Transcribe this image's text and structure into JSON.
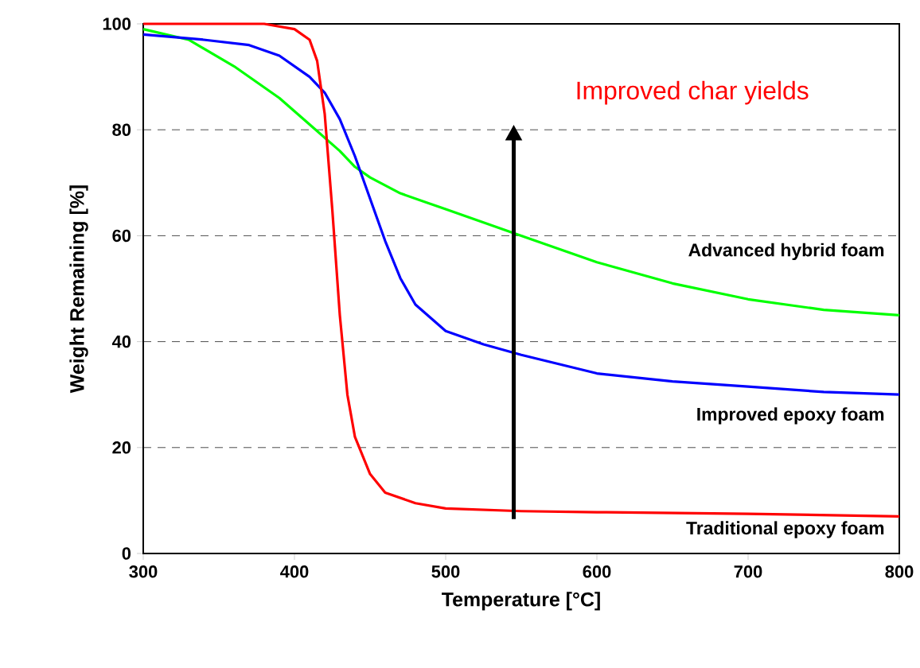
{
  "chart_data": {
    "type": "line",
    "xlabel": "Temperature [°C]",
    "ylabel": "Weight Remaining  [%]",
    "xlim": [
      300,
      800
    ],
    "ylim": [
      0,
      100
    ],
    "xticks": [
      300,
      400,
      500,
      600,
      700,
      800
    ],
    "yticks": [
      0,
      20,
      40,
      60,
      80,
      100
    ],
    "grid": "y",
    "marker": "none",
    "line_style": "solid",
    "legend": false,
    "annotations": [
      "Improved char yields"
    ],
    "series": [
      {
        "name": "Advanced hybrid foam",
        "color": "#00ff00",
        "x": [
          300,
          330,
          360,
          390,
          410,
          430,
          440,
          450,
          470,
          500,
          550,
          600,
          650,
          700,
          750,
          800
        ],
        "values": [
          99,
          97,
          92,
          86,
          81,
          76,
          73,
          71,
          68,
          65,
          60,
          55,
          51,
          48,
          46,
          45
        ]
      },
      {
        "name": "Improved epoxy foam",
        "color": "#0000ff",
        "x": [
          300,
          340,
          370,
          390,
          410,
          420,
          430,
          440,
          450,
          460,
          470,
          480,
          500,
          525,
          550,
          600,
          650,
          700,
          750,
          800
        ],
        "values": [
          98,
          97,
          96,
          94,
          90,
          87,
          82,
          75,
          67,
          59,
          52,
          47,
          42,
          39.5,
          37.5,
          34,
          32.5,
          31.5,
          30.5,
          30
        ]
      },
      {
        "name": "Traditional epoxy foam",
        "color": "#ff0000",
        "x": [
          300,
          380,
          400,
          410,
          415,
          420,
          425,
          430,
          435,
          440,
          450,
          460,
          480,
          500,
          550,
          600,
          700,
          800
        ],
        "values": [
          100,
          100,
          99,
          97,
          93,
          83,
          65,
          45,
          30,
          22,
          15,
          11.5,
          9.5,
          8.5,
          8,
          7.8,
          7.5,
          7
        ]
      }
    ]
  }
}
